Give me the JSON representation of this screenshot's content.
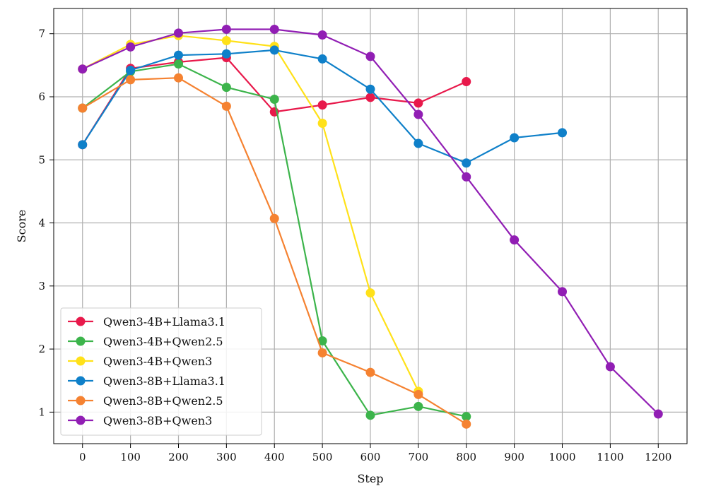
{
  "chart_data": {
    "type": "line",
    "title": "",
    "xlabel": "Step",
    "ylabel": "Score",
    "xlim": [
      -60,
      1260
    ],
    "ylim": [
      0.5,
      7.4
    ],
    "xticks": [
      0,
      100,
      200,
      300,
      400,
      500,
      600,
      700,
      800,
      900,
      1000,
      1100,
      1200
    ],
    "yticks": [
      1,
      2,
      3,
      4,
      5,
      6,
      7
    ],
    "grid": true,
    "legend_position": "lower-left",
    "series": [
      {
        "name": "Qwen3-4B+Llama3.1",
        "color": "#e8194b",
        "x": [
          0,
          100,
          200,
          300,
          400,
          500,
          600,
          700,
          800
        ],
        "y": [
          5.24,
          6.45,
          6.55,
          6.62,
          5.76,
          5.87,
          5.99,
          5.9,
          6.24
        ]
      },
      {
        "name": "Qwen3-4B+Qwen2.5",
        "color": "#3cb44b",
        "x": [
          0,
          100,
          200,
          300,
          400,
          500,
          600,
          700,
          800
        ],
        "y": [
          5.82,
          6.4,
          6.52,
          6.15,
          5.96,
          2.13,
          0.95,
          1.09,
          0.93
        ]
      },
      {
        "name": "Qwen3-4B+Qwen3",
        "color": "#ffe119",
        "x": [
          0,
          100,
          200,
          300,
          400,
          500,
          600,
          700
        ],
        "y": [
          6.44,
          6.83,
          6.97,
          6.89,
          6.8,
          5.58,
          2.89,
          1.33
        ]
      },
      {
        "name": "Qwen3-8B+Llama3.1",
        "color": "#0f80c9",
        "x": [
          0,
          100,
          200,
          300,
          400,
          500,
          600,
          700,
          800,
          900,
          1000
        ],
        "y": [
          5.24,
          6.42,
          6.66,
          6.68,
          6.74,
          6.6,
          6.12,
          5.26,
          4.95,
          5.35,
          5.43
        ]
      },
      {
        "name": "Qwen3-8B+Qwen2.5",
        "color": "#f58231",
        "x": [
          0,
          100,
          200,
          300,
          400,
          500,
          600,
          700,
          800
        ],
        "y": [
          5.82,
          6.27,
          6.3,
          5.85,
          4.07,
          1.94,
          1.63,
          1.28,
          0.81
        ]
      },
      {
        "name": "Qwen3-8B+Qwen3",
        "color": "#911eb4",
        "x": [
          0,
          100,
          200,
          300,
          400,
          500,
          600,
          700,
          800,
          900,
          1000,
          1100,
          1200
        ],
        "y": [
          6.44,
          6.79,
          7.01,
          7.07,
          7.07,
          6.98,
          6.64,
          5.72,
          4.73,
          3.73,
          2.91,
          1.72,
          0.97
        ]
      }
    ]
  }
}
